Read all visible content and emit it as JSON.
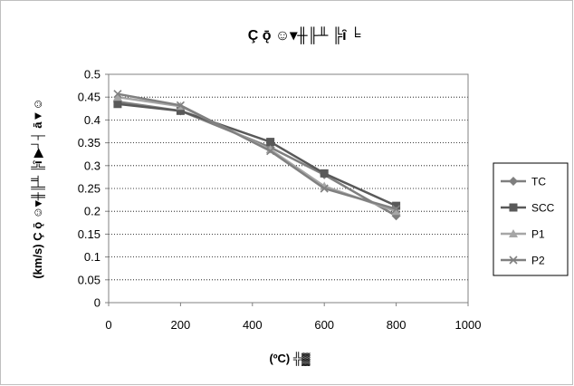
{
  "chart_data": {
    "type": "line",
    "title": "Ç ǭ ☺▾╫╟╨ ╠ȋ ╘",
    "xlabel": "(ºC) ╬▓",
    "ylabel": "(km/s) Ç ǭ ☺▾╫╟╨ ╠ȋ ▶┘┤ ā▼☺",
    "xlim": [
      0,
      1000
    ],
    "ylim": [
      0,
      0.5
    ],
    "x_ticks": [
      "0",
      "200",
      "400",
      "600",
      "800",
      "1000"
    ],
    "y_ticks": [
      "0",
      "0.05",
      "0.1",
      "0.15",
      "0.2",
      "0.25",
      "0.3",
      "0.35",
      "0.4",
      "0.45",
      "0.5"
    ],
    "grid": "horizontal",
    "legend_position": "right",
    "series": [
      {
        "name": "TC",
        "color": "#7f7f7f",
        "marker": "diamond",
        "x": [
          25,
          200,
          450,
          600,
          800
        ],
        "y": [
          0.44,
          0.42,
          0.34,
          0.28,
          0.19
        ]
      },
      {
        "name": "SCC",
        "color": "#595959",
        "marker": "square",
        "x": [
          25,
          200,
          450,
          600,
          800
        ],
        "y": [
          0.435,
          0.42,
          0.352,
          0.283,
          0.212
        ]
      },
      {
        "name": "P1",
        "color": "#a6a6a6",
        "marker": "triangle",
        "x": [
          25,
          200,
          450,
          600,
          800
        ],
        "y": [
          0.45,
          0.43,
          0.335,
          0.255,
          0.2
        ]
      },
      {
        "name": "P2",
        "color": "#808080",
        "marker": "x",
        "x": [
          25,
          200,
          450,
          600,
          800
        ],
        "y": [
          0.457,
          0.432,
          0.332,
          0.25,
          0.205
        ]
      }
    ]
  }
}
